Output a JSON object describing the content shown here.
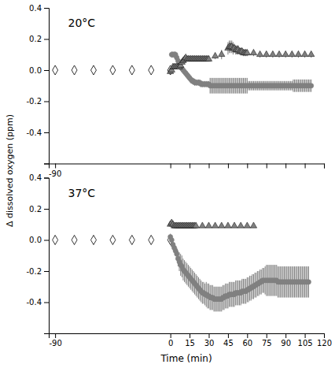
{
  "chart_data": [
    {
      "type": "scatter",
      "title": "20°C",
      "ylabel": "Δ dissolved oxygen (ppm)",
      "xlim": [
        -95,
        120
      ],
      "ylim": [
        -0.6,
        0.4
      ],
      "xticks": [
        -90,
        0,
        15,
        30,
        45,
        60,
        75,
        90,
        105,
        120
      ],
      "yticks": [
        {
          "value": -0.6,
          "label": null
        },
        -0.4,
        -0.2,
        {
          "value": 0.0,
          "label": "0.0"
        },
        0.2,
        0.4
      ],
      "tick_labels": "y",
      "annotations": [
        {
          "text": "-90",
          "x": -90
        }
      ],
      "series": [
        {
          "color": "#ffffff",
          "marker": "diamond",
          "x": [
            -90,
            -75,
            -60,
            -45,
            -30,
            -15,
            0
          ],
          "values": [
            0.0,
            0.0,
            0.0,
            0.0,
            0.0,
            0.0,
            0.0
          ]
        },
        {
          "color": "#808080",
          "marker": "circle",
          "x": [
            1,
            2,
            3,
            4,
            5,
            6,
            7,
            8,
            9,
            10,
            11,
            12,
            13,
            14,
            15,
            16,
            17,
            18,
            19,
            20,
            21,
            22,
            23,
            24,
            25,
            26,
            27,
            28,
            29,
            30,
            31,
            32,
            33,
            34,
            35,
            36,
            37,
            38,
            39,
            40,
            41,
            42,
            43,
            44,
            45,
            46,
            47,
            48,
            49,
            50,
            51,
            52,
            53,
            54,
            55,
            56,
            57,
            58,
            59,
            60,
            61,
            62,
            63,
            64,
            65,
            66,
            67,
            68,
            69,
            70,
            71,
            72,
            73,
            74,
            75,
            76,
            77,
            78,
            79,
            80,
            81,
            82,
            83,
            84,
            85,
            86,
            87,
            88,
            89,
            90,
            91,
            92,
            93,
            94,
            95,
            96,
            97,
            98,
            99,
            100,
            101,
            102,
            103,
            104,
            105,
            106,
            107,
            108,
            109,
            110
          ],
          "values": [
            0.1,
            0.1,
            0.1,
            0.1,
            0.08,
            0.06,
            0.04,
            0.02,
            0.01,
            0.0,
            -0.01,
            -0.02,
            -0.03,
            -0.04,
            -0.05,
            -0.06,
            -0.07,
            -0.07,
            -0.08,
            -0.08,
            -0.08,
            -0.08,
            -0.08,
            -0.09,
            -0.09,
            -0.09,
            -0.09,
            -0.09,
            -0.09,
            -0.09,
            -0.1,
            -0.1,
            -0.1,
            -0.1,
            -0.1,
            -0.1,
            -0.1,
            -0.1,
            -0.1,
            -0.1,
            -0.1,
            -0.1,
            -0.1,
            -0.1,
            -0.1,
            -0.1,
            -0.1,
            -0.1,
            -0.1,
            -0.1,
            -0.1,
            -0.1,
            -0.1,
            -0.1,
            -0.1,
            -0.1,
            -0.1,
            -0.1,
            -0.1,
            -0.1,
            -0.1,
            -0.1,
            -0.1,
            -0.1,
            -0.1,
            -0.1,
            -0.1,
            -0.1,
            -0.1,
            -0.1,
            -0.1,
            -0.1,
            -0.1,
            -0.1,
            -0.1,
            -0.1,
            -0.1,
            -0.1,
            -0.1,
            -0.1,
            -0.1,
            -0.1,
            -0.1,
            -0.1,
            -0.1,
            -0.1,
            -0.1,
            -0.1,
            -0.1,
            -0.1,
            -0.1,
            -0.1,
            -0.1,
            -0.1,
            -0.1,
            -0.1,
            -0.1,
            -0.1,
            -0.1,
            -0.1,
            -0.1,
            -0.1,
            -0.1,
            -0.1,
            -0.1,
            -0.1,
            -0.1,
            -0.1,
            -0.1,
            -0.1
          ],
          "errors": [
            0.02,
            0.02,
            0.02,
            0.02,
            0.02,
            0.02,
            0.02,
            0.02,
            0.02,
            0.02,
            0.02,
            0.02,
            0.02,
            0.02,
            0.02,
            0.02,
            0.02,
            0.02,
            0.02,
            0.02,
            0.02,
            0.02,
            0.02,
            0.02,
            0.02,
            0.02,
            0.02,
            0.02,
            0.02,
            0.02,
            0.05,
            0.05,
            0.05,
            0.05,
            0.05,
            0.05,
            0.05,
            0.05,
            0.05,
            0.05,
            0.05,
            0.05,
            0.05,
            0.05,
            0.05,
            0.05,
            0.05,
            0.05,
            0.05,
            0.05,
            0.05,
            0.05,
            0.05,
            0.05,
            0.05,
            0.05,
            0.05,
            0.05,
            0.05,
            0.05,
            0.03,
            0.03,
            0.03,
            0.03,
            0.03,
            0.03,
            0.03,
            0.03,
            0.03,
            0.03,
            0.03,
            0.03,
            0.03,
            0.03,
            0.03,
            0.03,
            0.03,
            0.03,
            0.03,
            0.03,
            0.03,
            0.03,
            0.03,
            0.03,
            0.03,
            0.03,
            0.03,
            0.03,
            0.03,
            0.03,
            0.03,
            0.03,
            0.03,
            0.03,
            0.03,
            0.04,
            0.04,
            0.04,
            0.04,
            0.04,
            0.04,
            0.04,
            0.04,
            0.04,
            0.04,
            0.04,
            0.04,
            0.04,
            0.04,
            0.04
          ]
        },
        {
          "color": "#808080",
          "marker": "triangle",
          "x": [
            0,
            1,
            2,
            3,
            4,
            5,
            6,
            7,
            8,
            9,
            10,
            11,
            12,
            13,
            14,
            15,
            16,
            17,
            18,
            19,
            20,
            21,
            22,
            23,
            24,
            25,
            26,
            27,
            28,
            29,
            30,
            35,
            40,
            45,
            46,
            47,
            48,
            49,
            50,
            51,
            52,
            53,
            54,
            55,
            56,
            57,
            58,
            59,
            60,
            65,
            70,
            75,
            80,
            85,
            90,
            95,
            100,
            105,
            110
          ],
          "values": [
            -0.01,
            0.0,
            0.02,
            0.02,
            0.02,
            0.02,
            0.02,
            0.02,
            0.03,
            0.05,
            0.06,
            0.07,
            0.08,
            0.07,
            0.07,
            0.07,
            0.07,
            0.07,
            0.07,
            0.07,
            0.07,
            0.07,
            0.07,
            0.07,
            0.07,
            0.07,
            0.07,
            0.07,
            0.07,
            0.07,
            0.07,
            0.09,
            0.1,
            0.14,
            0.15,
            0.15,
            0.15,
            0.14,
            0.14,
            0.13,
            0.13,
            0.13,
            0.12,
            0.12,
            0.12,
            0.11,
            0.11,
            0.11,
            0.11,
            0.11,
            0.1,
            0.1,
            0.1,
            0.1,
            0.1,
            0.1,
            0.1,
            0.1,
            0.1
          ],
          "errors": [
            0.01,
            0.01,
            0.01,
            0.01,
            0.01,
            0.01,
            0.01,
            0.01,
            0.01,
            0.01,
            0.01,
            0.01,
            0.01,
            0.01,
            0.01,
            0.01,
            0.01,
            0.01,
            0.01,
            0.01,
            0.01,
            0.01,
            0.01,
            0.01,
            0.01,
            0.01,
            0.01,
            0.01,
            0.01,
            0.01,
            0.01,
            0.02,
            0.03,
            0.04,
            0.04,
            0.04,
            0.04,
            0.04,
            0.03,
            0.03,
            0.03,
            0.03,
            0.02,
            0.02,
            0.02,
            0.02,
            0.02,
            0.02,
            0.02,
            0.02,
            0.02,
            0.02,
            0.02,
            0.02,
            0.02,
            0.02,
            0.02,
            0.02,
            0.02
          ]
        }
      ]
    },
    {
      "type": "scatter",
      "title": "37°C",
      "xlabel": "Time (min)",
      "xlim": [
        -95,
        120
      ],
      "ylim": [
        -0.6,
        0.4
      ],
      "xticks": [
        -90,
        0,
        15,
        30,
        45,
        60,
        75,
        90,
        105,
        120
      ],
      "yticks": [
        {
          "value": -0.6,
          "label": null
        },
        -0.4,
        -0.2,
        {
          "value": 0.0,
          "label": "0.0"
        },
        0.2,
        0.4
      ],
      "series": [
        {
          "color": "#ffffff",
          "marker": "diamond",
          "x": [
            -90,
            -75,
            -60,
            -45,
            -30,
            -15,
            0
          ],
          "values": [
            0.0,
            0.0,
            0.0,
            0.0,
            0.0,
            0.0,
            0.0
          ]
        },
        {
          "color": "#808080",
          "marker": "circle",
          "x": [
            0,
            1,
            2,
            3,
            4,
            5,
            6,
            7,
            8,
            9,
            10,
            11,
            12,
            13,
            14,
            15,
            16,
            17,
            18,
            19,
            20,
            21,
            22,
            23,
            24,
            25,
            26,
            27,
            28,
            29,
            30,
            31,
            32,
            33,
            34,
            35,
            36,
            37,
            38,
            39,
            40,
            41,
            42,
            43,
            44,
            45,
            46,
            47,
            48,
            49,
            50,
            51,
            52,
            53,
            54,
            55,
            56,
            57,
            58,
            59,
            60,
            61,
            62,
            63,
            64,
            65,
            66,
            67,
            68,
            69,
            70,
            71,
            72,
            73,
            74,
            75,
            76,
            77,
            78,
            79,
            80,
            81,
            82,
            83,
            84,
            85,
            86,
            87,
            88,
            89,
            90,
            91,
            92,
            93,
            94,
            95,
            96,
            97,
            98,
            99,
            100,
            101,
            102,
            103,
            104,
            105,
            106,
            107,
            108
          ],
          "values": [
            0.02,
            0.0,
            -0.03,
            -0.05,
            -0.07,
            -0.09,
            -0.12,
            -0.14,
            -0.16,
            -0.17,
            -0.19,
            -0.2,
            -0.21,
            -0.22,
            -0.23,
            -0.24,
            -0.25,
            -0.26,
            -0.27,
            -0.28,
            -0.29,
            -0.3,
            -0.31,
            -0.32,
            -0.33,
            -0.34,
            -0.34,
            -0.35,
            -0.35,
            -0.36,
            -0.36,
            -0.37,
            -0.37,
            -0.37,
            -0.38,
            -0.38,
            -0.38,
            -0.38,
            -0.38,
            -0.38,
            -0.38,
            -0.37,
            -0.37,
            -0.36,
            -0.36,
            -0.36,
            -0.35,
            -0.35,
            -0.35,
            -0.35,
            -0.35,
            -0.34,
            -0.34,
            -0.34,
            -0.34,
            -0.34,
            -0.33,
            -0.33,
            -0.33,
            -0.33,
            -0.32,
            -0.32,
            -0.31,
            -0.31,
            -0.3,
            -0.3,
            -0.29,
            -0.29,
            -0.28,
            -0.28,
            -0.27,
            -0.27,
            -0.26,
            -0.26,
            -0.26,
            -0.26,
            -0.26,
            -0.26,
            -0.26,
            -0.26,
            -0.26,
            -0.26,
            -0.26,
            -0.26,
            -0.27,
            -0.27,
            -0.27,
            -0.27,
            -0.27,
            -0.27,
            -0.27,
            -0.27,
            -0.27,
            -0.27,
            -0.27,
            -0.27,
            -0.27,
            -0.27,
            -0.27,
            -0.27,
            -0.27,
            -0.27,
            -0.27,
            -0.27,
            -0.27,
            -0.27,
            -0.27,
            -0.27,
            -0.27
          ],
          "errors": [
            0.02,
            0.02,
            0.02,
            0.03,
            0.03,
            0.04,
            0.05,
            0.06,
            0.07,
            0.07,
            0.07,
            0.07,
            0.07,
            0.07,
            0.07,
            0.07,
            0.07,
            0.07,
            0.07,
            0.07,
            0.07,
            0.07,
            0.07,
            0.07,
            0.07,
            0.07,
            0.07,
            0.07,
            0.08,
            0.08,
            0.08,
            0.08,
            0.08,
            0.08,
            0.08,
            0.08,
            0.08,
            0.08,
            0.08,
            0.08,
            0.08,
            0.08,
            0.08,
            0.08,
            0.08,
            0.08,
            0.08,
            0.08,
            0.08,
            0.08,
            0.08,
            0.08,
            0.08,
            0.08,
            0.08,
            0.08,
            0.08,
            0.08,
            0.08,
            0.08,
            0.08,
            0.08,
            0.08,
            0.08,
            0.08,
            0.08,
            0.08,
            0.08,
            0.08,
            0.08,
            0.08,
            0.08,
            0.08,
            0.08,
            0.09,
            0.1,
            0.1,
            0.1,
            0.1,
            0.1,
            0.1,
            0.1,
            0.1,
            0.1,
            0.1,
            0.1,
            0.1,
            0.1,
            0.1,
            0.1,
            0.1,
            0.1,
            0.1,
            0.1,
            0.1,
            0.1,
            0.1,
            0.1,
            0.1,
            0.1,
            0.1,
            0.1,
            0.1,
            0.1,
            0.1,
            0.1,
            0.1,
            0.1,
            0.1
          ]
        },
        {
          "color": "#808080",
          "marker": "triangle",
          "x": [
            0,
            1,
            2,
            3,
            4,
            5,
            6,
            7,
            8,
            9,
            10,
            11,
            12,
            13,
            14,
            15,
            16,
            17,
            18,
            19,
            20,
            25,
            30,
            35,
            40,
            45,
            50,
            55,
            60,
            65
          ],
          "values": [
            0.1,
            0.11,
            0.1,
            0.09,
            0.09,
            0.09,
            0.09,
            0.09,
            0.09,
            0.09,
            0.09,
            0.09,
            0.09,
            0.09,
            0.09,
            0.09,
            0.09,
            0.09,
            0.09,
            0.09,
            0.09,
            0.09,
            0.09,
            0.09,
            0.09,
            0.09,
            0.09,
            0.09,
            0.09,
            0.09
          ],
          "errors": [
            0.01,
            0.01,
            0.01,
            0.01,
            0.01,
            0.01,
            0.01,
            0.01,
            0.01,
            0.01,
            0.01,
            0.01,
            0.01,
            0.01,
            0.01,
            0.01,
            0.01,
            0.01,
            0.01,
            0.01,
            0.01,
            0.01,
            0.01,
            0.01,
            0.01,
            0.01,
            0.01,
            0.01,
            0.01,
            0.01
          ]
        }
      ]
    }
  ]
}
